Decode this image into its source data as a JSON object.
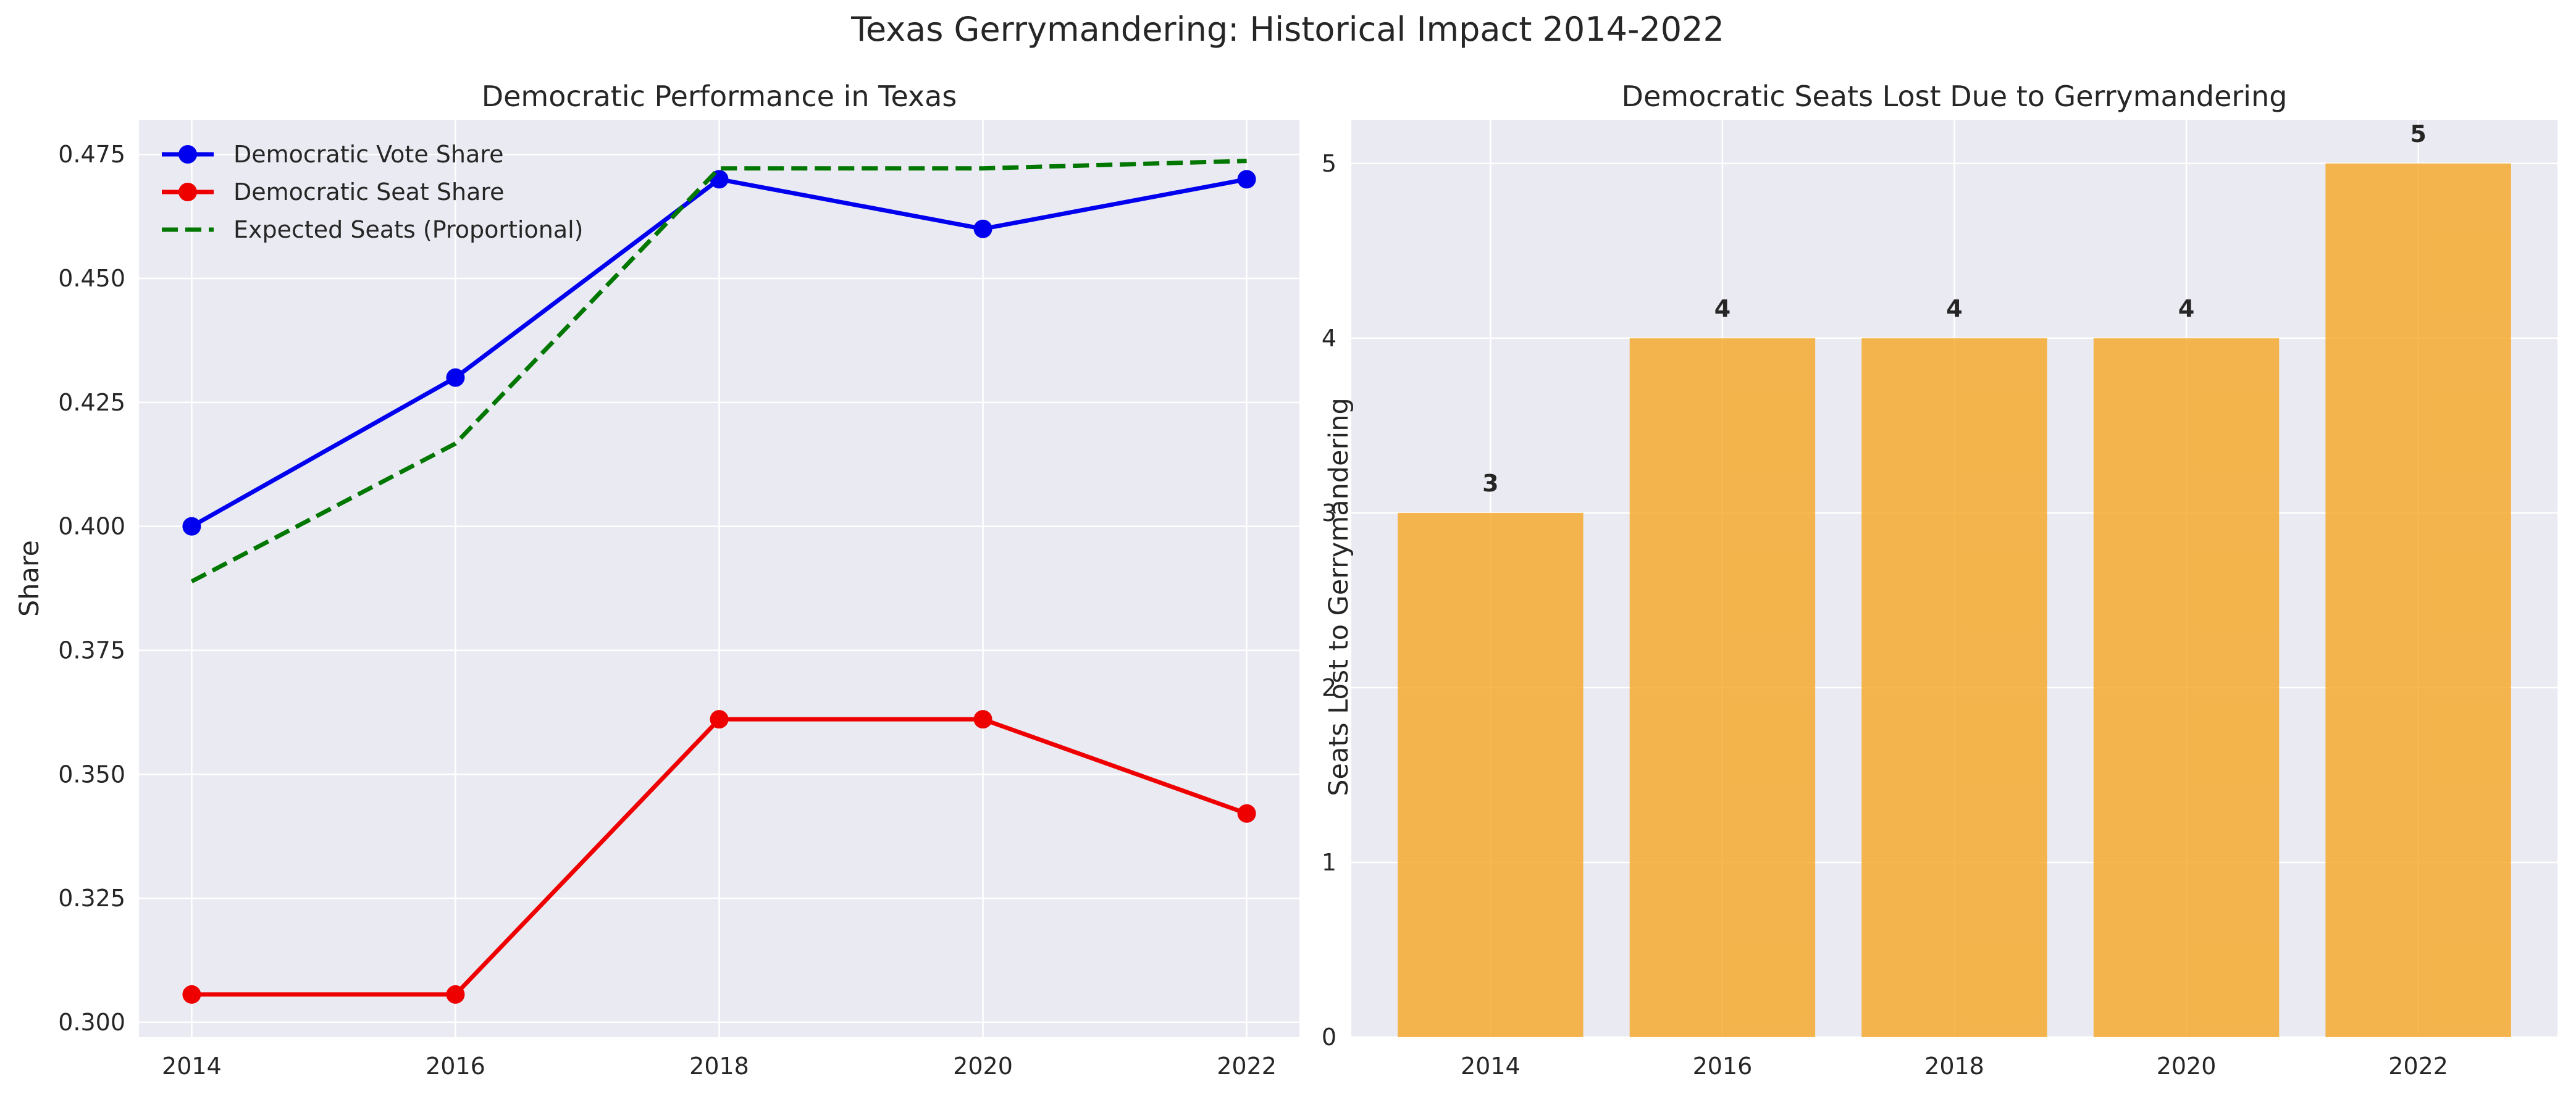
{
  "figure": {
    "suptitle": "Texas Gerrymandering: Historical Impact 2014-2022"
  },
  "chart_data": [
    {
      "type": "line",
      "title": "Democratic Performance in Texas",
      "xlabel": "",
      "ylabel": "Share",
      "x": [
        2014,
        2016,
        2018,
        2020,
        2022
      ],
      "x_tick_labels": [
        "2014",
        "2016",
        "2018",
        "2020",
        "2022"
      ],
      "xlim": [
        2013.6,
        2022.4
      ],
      "ylim": [
        0.297,
        0.482
      ],
      "y_ticks": [
        0.3,
        0.325,
        0.35,
        0.375,
        0.4,
        0.425,
        0.45,
        0.475
      ],
      "y_tick_labels": [
        "0.300",
        "0.325",
        "0.350",
        "0.375",
        "0.400",
        "0.425",
        "0.450",
        "0.475"
      ],
      "grid": true,
      "legend_position": "upper left",
      "series": [
        {
          "name": "Democratic Vote Share",
          "values": [
            0.4,
            0.43,
            0.47,
            0.46,
            0.47
          ],
          "color": "#0000ee",
          "style": "solid",
          "marker": "circle"
        },
        {
          "name": "Democratic Seat Share",
          "values": [
            0.3056,
            0.3056,
            0.3611,
            0.3611,
            0.3421
          ],
          "color": "#ee0000",
          "style": "solid",
          "marker": "circle"
        },
        {
          "name": "Expected Seats (Proportional)",
          "values": [
            0.3889,
            0.4167,
            0.4722,
            0.4722,
            0.4737
          ],
          "color": "#007700",
          "style": "dashed",
          "marker": "none"
        }
      ]
    },
    {
      "type": "bar",
      "title": "Democratic Seats Lost Due to Gerrymandering",
      "xlabel": "",
      "ylabel": "Seats Lost to Gerrymandering",
      "categories": [
        "2014",
        "2016",
        "2018",
        "2020",
        "2022"
      ],
      "values": [
        3,
        4,
        4,
        4,
        5
      ],
      "data_labels": [
        "3",
        "4",
        "4",
        "4",
        "5"
      ],
      "ylim": [
        0,
        5.25
      ],
      "y_ticks": [
        0,
        1,
        2,
        3,
        4,
        5
      ],
      "y_tick_labels": [
        "0",
        "1",
        "2",
        "3",
        "4",
        "5"
      ],
      "bar_color": "#f5a623",
      "grid": true
    }
  ],
  "colors": {
    "axes_background": "#eaeaf2",
    "grid": "#ffffff",
    "text": "#262626"
  }
}
